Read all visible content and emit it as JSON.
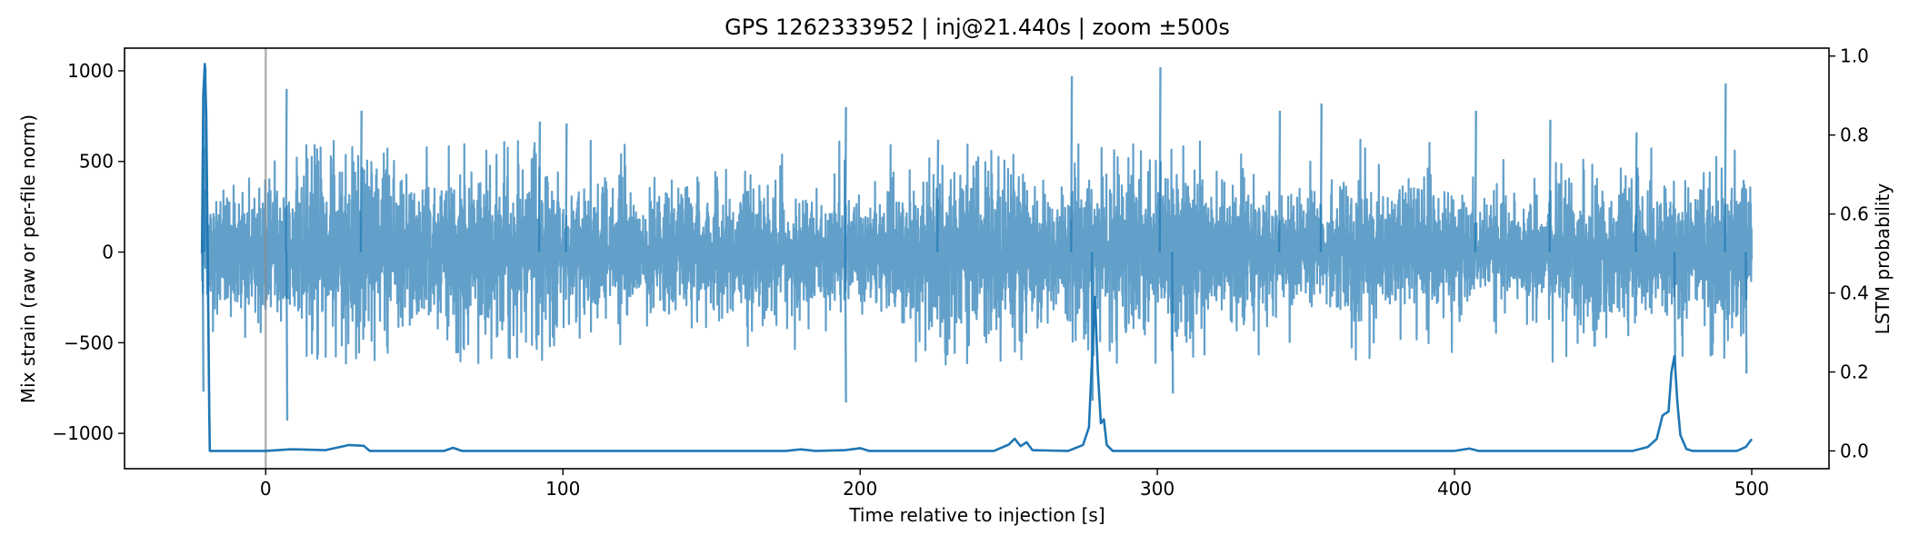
{
  "chart_data": {
    "type": "line",
    "title": "GPS 1262333952 | inj@21.440s | zoom ±500s",
    "xlabel": "Time relative to injection [s]",
    "ylabel_left": "Mix strain (raw or per-file norm)",
    "ylabel_right": "LSTM probability",
    "xlim": [
      -47.5,
      526
    ],
    "ylim_left": [
      -1195,
      1125
    ],
    "ylim_right": [
      -0.045,
      1.02
    ],
    "x_ticks": [
      0,
      100,
      200,
      300,
      400,
      500
    ],
    "y_ticks_left": [
      -1000,
      -500,
      0,
      500,
      1000
    ],
    "y_ticks_right": [
      0.0,
      0.2,
      0.4,
      0.6,
      0.8,
      1.0
    ],
    "x_tick_labels": [
      "0",
      "100",
      "200",
      "300",
      "400",
      "500"
    ],
    "y_tick_labels_left": [
      "−1000",
      "−500",
      "0",
      "500",
      "1000"
    ],
    "y_tick_labels_right": [
      "0.0",
      "0.2",
      "0.4",
      "0.6",
      "0.8",
      "1.0"
    ],
    "injection_marker_x": 0,
    "grid": false,
    "series": [
      {
        "axis": "left",
        "style": "strain-noise",
        "color": "#1f77b4",
        "opacity": 0.7,
        "x_range": [
          -21.44,
          500
        ],
        "typical_envelope": [
          -450,
          450
        ],
        "peaks": [
          {
            "x": -21.0,
            "y": 580
          },
          {
            "x": -20.5,
            "y": 1020
          },
          {
            "x": -21.2,
            "y": -770
          },
          {
            "x": 6.8,
            "y": 900
          },
          {
            "x": 7.0,
            "y": -930
          },
          {
            "x": 32.0,
            "y": 780
          },
          {
            "x": 92.0,
            "y": 720
          },
          {
            "x": 101.0,
            "y": 710
          },
          {
            "x": 195.0,
            "y": 800
          },
          {
            "x": 195.0,
            "y": -830
          },
          {
            "x": 226.0,
            "y": 620
          },
          {
            "x": 271.0,
            "y": 970
          },
          {
            "x": 278.0,
            "y": -820
          },
          {
            "x": 300.8,
            "y": 1020
          },
          {
            "x": 305.0,
            "y": -780
          },
          {
            "x": 341.0,
            "y": 780
          },
          {
            "x": 355.0,
            "y": 820
          },
          {
            "x": 407.0,
            "y": 780
          },
          {
            "x": 432.0,
            "y": 730
          },
          {
            "x": 461.0,
            "y": 660
          },
          {
            "x": 474.0,
            "y": -640
          },
          {
            "x": 491.0,
            "y": 930
          },
          {
            "x": 498.0,
            "y": -670
          }
        ]
      },
      {
        "axis": "right",
        "style": "probability",
        "color": "#1f77b4",
        "x": [
          -21.44,
          -21.0,
          -20.5,
          -20.0,
          -19.5,
          -19.0,
          -18.8,
          0,
          8,
          10,
          20,
          25,
          28,
          33,
          35,
          38,
          60,
          63,
          66,
          175,
          180,
          185,
          195,
          200,
          203,
          245,
          250,
          252,
          254,
          256,
          258,
          270,
          275,
          277,
          278,
          279,
          280,
          281,
          282,
          283,
          285,
          290,
          300,
          400,
          405,
          408,
          460,
          465,
          468,
          470,
          472,
          473,
          474,
          475,
          476,
          478,
          480,
          495,
          498,
          500
        ],
        "y": [
          0.5,
          0.9,
          0.98,
          0.85,
          0.5,
          0.1,
          0.0,
          0.0,
          0.004,
          0.004,
          0.002,
          0.01,
          0.015,
          0.013,
          0.0,
          0.0,
          0.0,
          0.008,
          0.0,
          0.0,
          0.004,
          0.0,
          0.002,
          0.007,
          0.0,
          0.0,
          0.016,
          0.031,
          0.012,
          0.022,
          0.002,
          0.0,
          0.015,
          0.06,
          0.23,
          0.39,
          0.2,
          0.07,
          0.08,
          0.015,
          0.0,
          0.0,
          0.0,
          0.0,
          0.006,
          0.0,
          0.0,
          0.01,
          0.03,
          0.09,
          0.1,
          0.2,
          0.24,
          0.12,
          0.04,
          0.005,
          0.0,
          0.0,
          0.01,
          0.03
        ]
      }
    ]
  }
}
